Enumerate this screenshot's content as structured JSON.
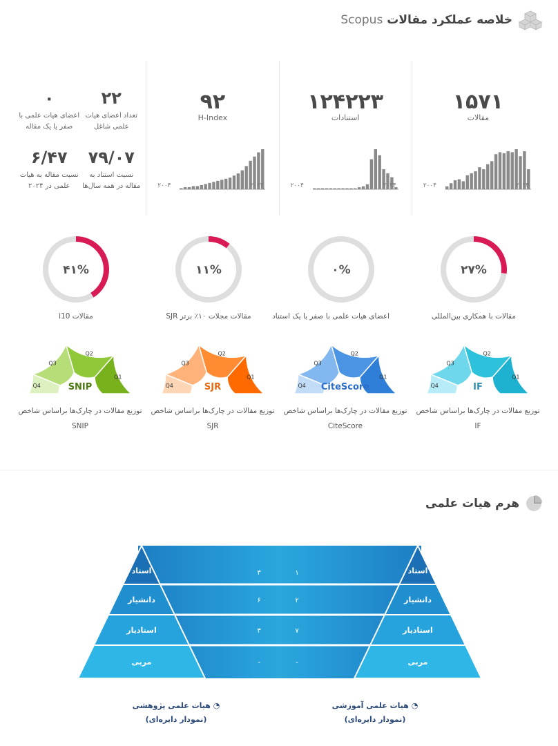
{
  "scopus_section": {
    "title": "خلاصه عملکرد مقالات",
    "title_latin": "Scopus",
    "icon": "cubes-icon"
  },
  "stats": {
    "articles": {
      "value": "۱۵۷۱",
      "label": "مقالات",
      "axis_start": "۲۰۰۴",
      "axis_end": "۲۰۲۴"
    },
    "citations": {
      "value": "۱۲۴۲۲۳",
      "label": "استنادات",
      "axis_start": "۲۰۰۴",
      "axis_end": "۲۰۲۴"
    },
    "hindex": {
      "value": "۹۲",
      "label": "H-Index",
      "axis_start": "۲۰۰۴",
      "axis_end": "۲۰۲۴"
    },
    "faculty": {
      "members_count": "۲۲",
      "members_label": "تعداد اعضای هیات علمی شاغل",
      "zero_count": "۰",
      "zero_label": "اعضای هیات علمی با صفر یا یک مقاله",
      "citation_ratio": "۷۹/۰۷",
      "citation_ratio_label": "نسبت استناد به مقاله در همه سال‌ها",
      "article_ratio": "۶/۴۷",
      "article_ratio_label": "نسبت مقاله به هیات علمی در ۲۰۲۴"
    }
  },
  "gauges": [
    {
      "value": "۲۷%",
      "fraction": 0.27,
      "label": "مقالات با همکاری بین‌المللی"
    },
    {
      "value": "۰%",
      "fraction": 0.0,
      "label": "اعضای هیات علمی با صفر یا یک استناد"
    },
    {
      "value": "۱۱%",
      "fraction": 0.11,
      "label": "مقالات مجلات ۱۰٪ برتر SJR"
    },
    {
      "value": "۴۱%",
      "fraction": 0.41,
      "label": "مقالات i10"
    }
  ],
  "quartiles": [
    {
      "name": "IF",
      "label_line1": "توزیع مقالات در چارک‌ها براساس شاخص IF",
      "label_line2": "",
      "name_color": "#2f8fb0",
      "colors": [
        "#1fb2d0",
        "#2ec1dc",
        "#6fd7ec",
        "#b6ecf7"
      ]
    },
    {
      "name": "CiteScore",
      "label_line1": "توزیع مقالات در چارک‌ها براساس شاخص",
      "label_line2": "CiteScore",
      "name_color": "#2b6ec9",
      "colors": [
        "#2f7ed8",
        "#4a94e3",
        "#82b7ef",
        "#c2dcf8"
      ]
    },
    {
      "name": "SJR",
      "label_line1": "توزیع مقالات در چارک‌ها براساس شاخص",
      "label_line2": "SJR",
      "name_color": "#e46b12",
      "colors": [
        "#ff6a00",
        "#ff8c33",
        "#ffb27a",
        "#ffd6b5"
      ]
    },
    {
      "name": "SNIP",
      "label_line1": "توزیع مقالات در چارک‌ها براساس شاخص",
      "label_line2": "SNIP",
      "name_color": "#4d7a12",
      "colors": [
        "#77b21d",
        "#8fc838",
        "#b6dd78",
        "#ddf0c0"
      ]
    }
  ],
  "quartile_labels": [
    "Q1",
    "Q2",
    "Q3",
    "Q4"
  ],
  "pyramid_section": {
    "title": "هرم هیات علمی",
    "icon": "pie-chart-icon"
  },
  "pyramid": {
    "ranks": [
      "استاد",
      "دانشیار",
      "استادیار",
      "مربی"
    ],
    "teaching_values": [
      "۱",
      "۲",
      "۷",
      "-"
    ],
    "research_values": [
      "۳",
      "۶",
      "۳",
      "-"
    ],
    "legend_teaching": "هیات علمی آموزشی",
    "legend_teaching_sub": "(نمودار دایره‌ای)",
    "legend_research": "هیات علمی پژوهشی",
    "legend_research_sub": "(نمودار دایره‌ای)"
  },
  "chart_data": [
    {
      "type": "bar",
      "title": "مقالات",
      "x_range": [
        "۲۰۰۴",
        "۲۰۲۴"
      ],
      "values": [
        3,
        6,
        9,
        10,
        8,
        14,
        16,
        18,
        22,
        20,
        25,
        28,
        35,
        37,
        36,
        38,
        37,
        40,
        33,
        38,
        20
      ]
    },
    {
      "type": "bar",
      "title": "استنادات",
      "x_range": [
        "۲۰۰۴",
        "۲۰۲۴"
      ],
      "values": [
        1,
        1,
        1,
        1,
        1,
        1,
        1,
        1,
        1,
        1,
        1,
        2,
        3,
        5,
        30,
        40,
        34,
        20,
        16,
        12,
        2
      ]
    },
    {
      "type": "bar",
      "title": "H-Index",
      "x_range": [
        "۲۰۰۴",
        "۲۰۲۴"
      ],
      "values": [
        1,
        2,
        2,
        3,
        3,
        4,
        5,
        6,
        7,
        8,
        9,
        10,
        11,
        13,
        15,
        18,
        22,
        27,
        31,
        35,
        38
      ]
    }
  ]
}
